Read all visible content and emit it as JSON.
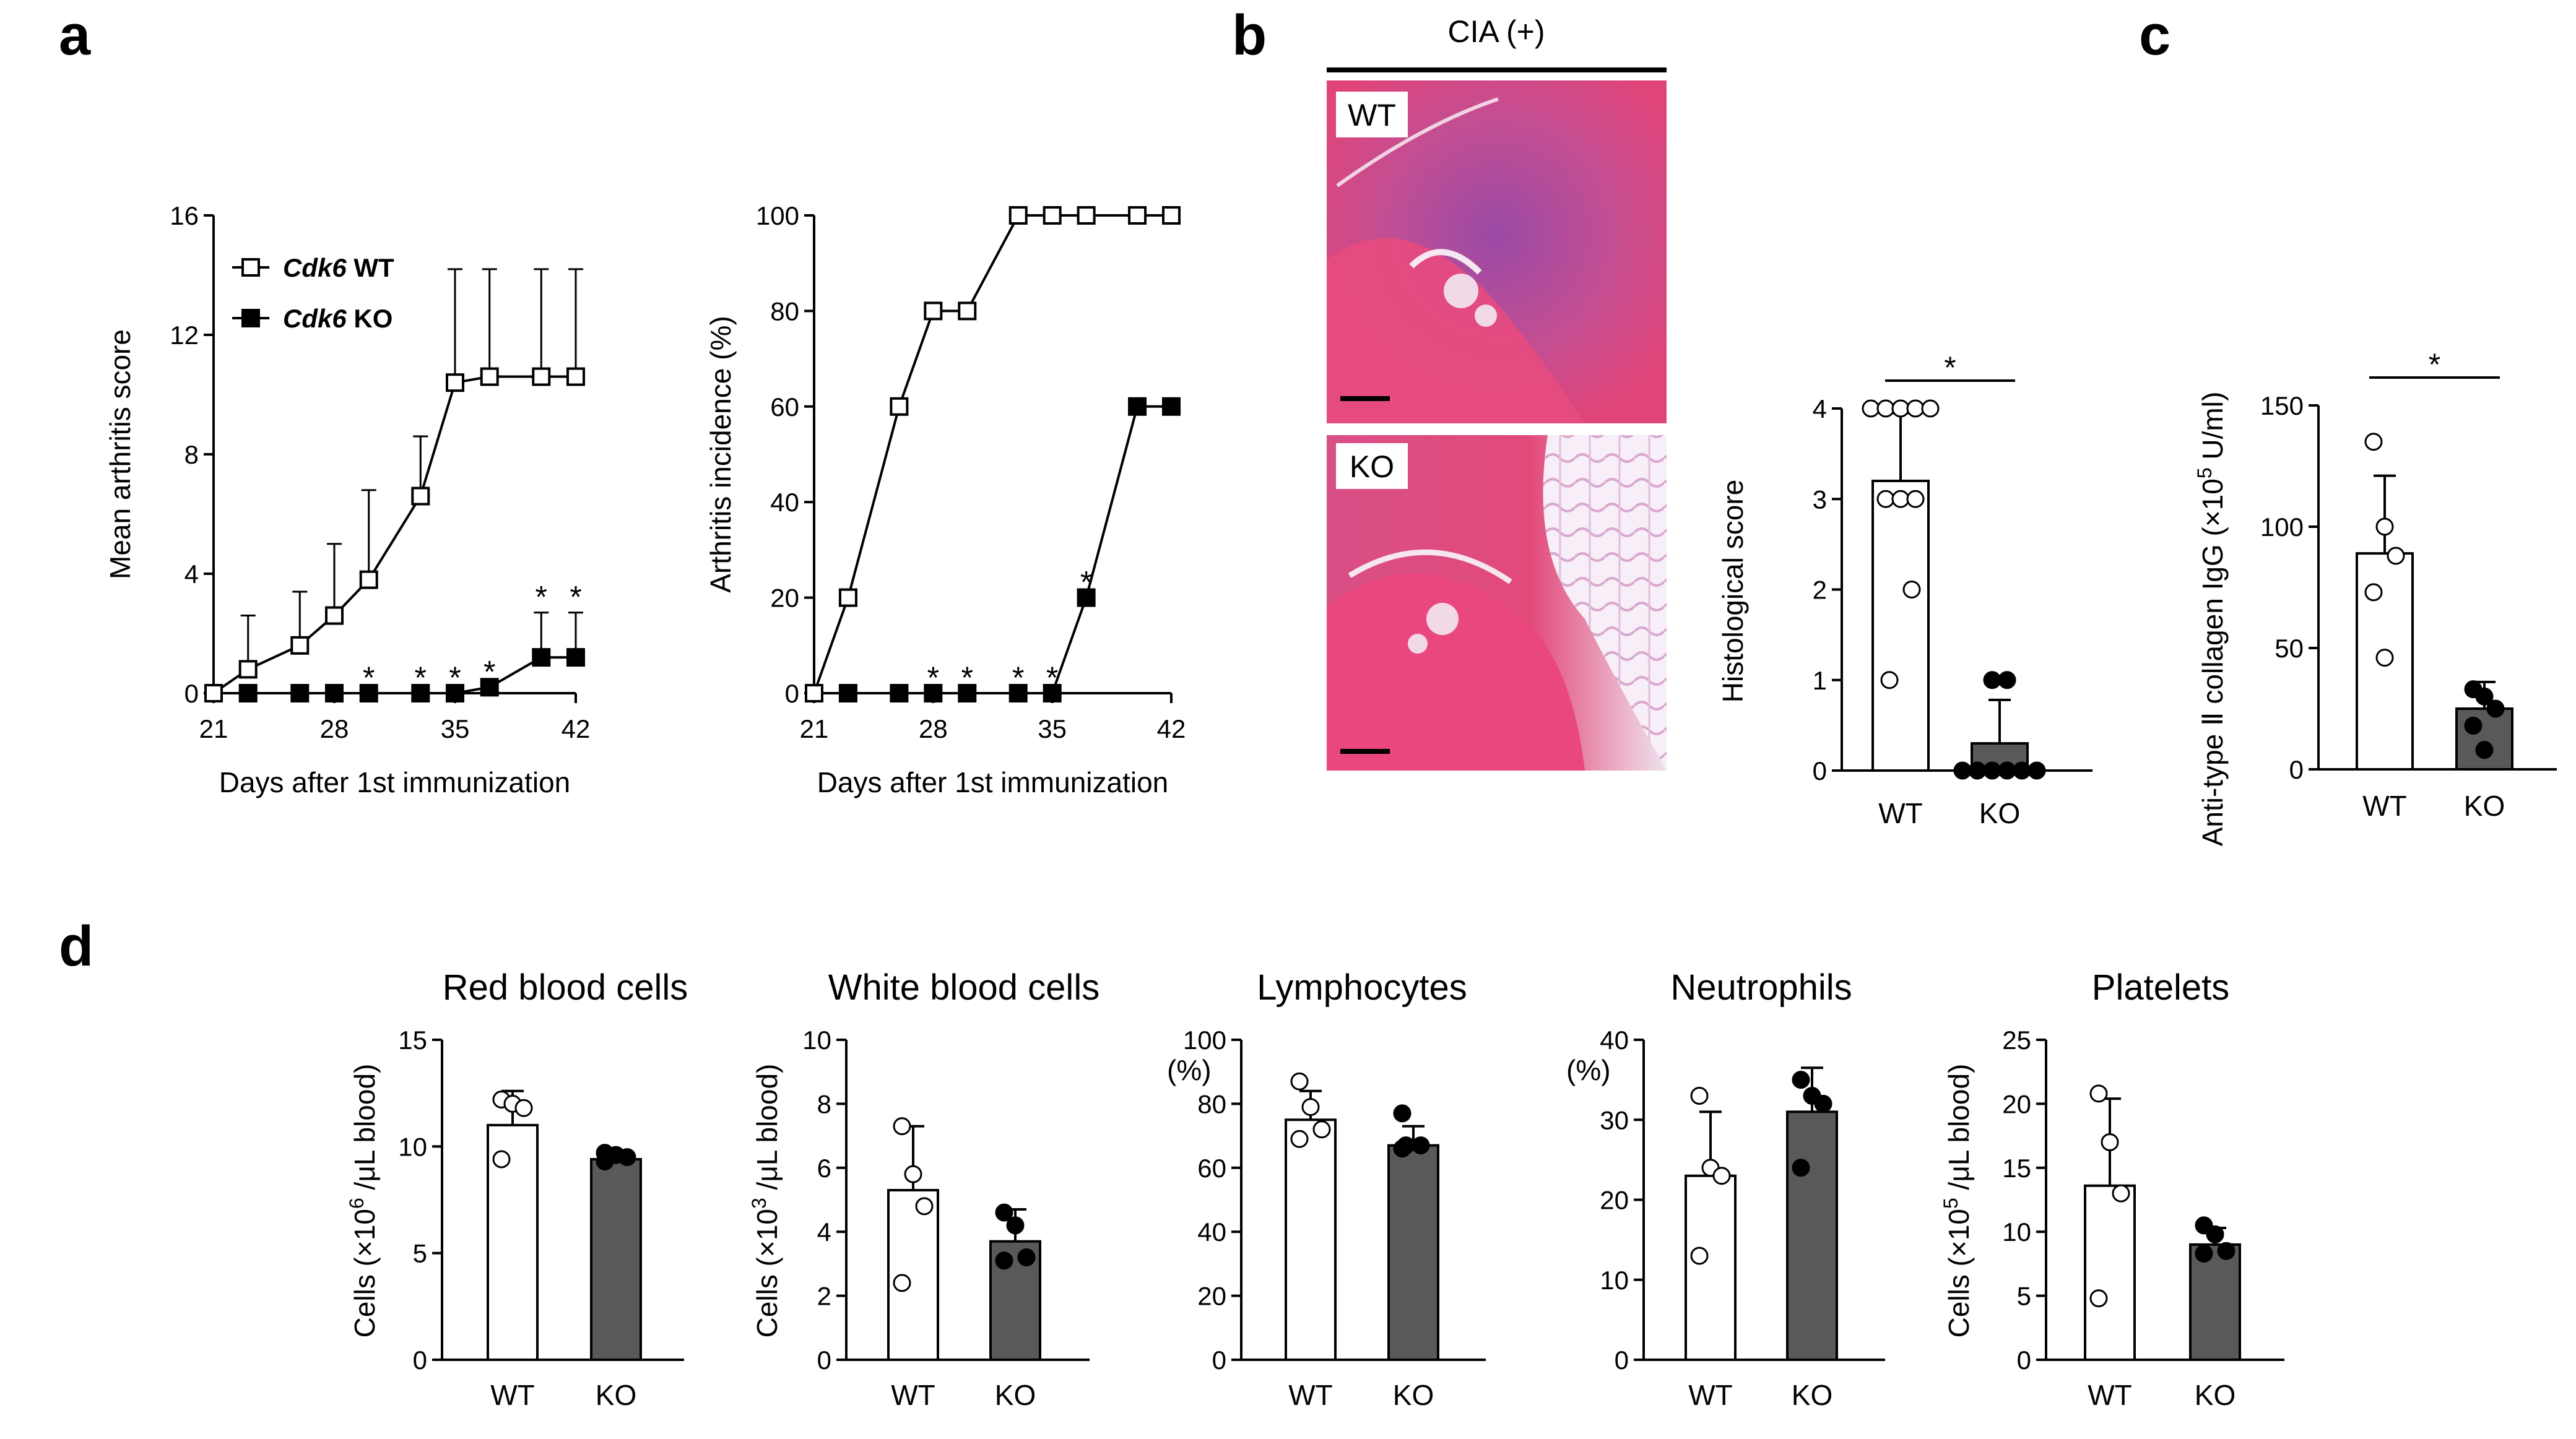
{
  "panels": {
    "a": "a",
    "b": "b",
    "c": "c",
    "d": "d"
  },
  "micrograph": {
    "header": "CIA (+)",
    "wt_label": "WT",
    "ko_label": "KO",
    "colors": {
      "tissue": "#e0457a",
      "stain": "#b64c9a",
      "fat": "#f7eef7"
    }
  },
  "colors": {
    "wt_fill": "#ffffff",
    "ko_fill": "#595959",
    "line": "#000000"
  },
  "chart_data": [
    {
      "id": "arthritis-score",
      "type": "line",
      "xlabel": "Days after 1st immunization",
      "ylabel": "Mean arthritis score",
      "xlim": [
        21,
        42
      ],
      "ylim": [
        0,
        16
      ],
      "xticks": [
        21,
        28,
        35,
        42
      ],
      "yticks": [
        0,
        4,
        8,
        12,
        16
      ],
      "legend_position": "top-left",
      "series": [
        {
          "name_prefix": "Cdk6",
          "name_suffix": " WT",
          "marker": "open-square",
          "x": [
            21,
            23,
            26,
            28,
            30,
            33,
            35,
            37,
            40,
            42
          ],
          "y": [
            0,
            0.8,
            1.6,
            2.6,
            3.8,
            6.6,
            10.4,
            10.6,
            10.6,
            10.6
          ],
          "error": [
            0,
            1.8,
            1.8,
            2.4,
            3.0,
            2.0,
            3.8,
            3.6,
            3.6,
            3.6
          ]
        },
        {
          "name_prefix": "Cdk6",
          "name_suffix": " KO",
          "marker": "filled-square",
          "x": [
            23,
            26,
            28,
            30,
            33,
            35,
            37,
            40,
            42
          ],
          "y": [
            0,
            0,
            0,
            0,
            0,
            0,
            0.2,
            1.2,
            1.2
          ],
          "error": [
            0,
            0,
            0,
            0,
            0,
            0,
            0,
            1.5,
            1.5
          ]
        }
      ],
      "significance_x": [
        30,
        33,
        35,
        37,
        40,
        42
      ],
      "significance_label": "*"
    },
    {
      "id": "arthritis-incidence",
      "type": "line",
      "xlabel": "Days after 1st immunization",
      "ylabel": "Arthritis incidence (%)",
      "xlim": [
        21,
        42
      ],
      "ylim": [
        0,
        100
      ],
      "xticks": [
        21,
        28,
        35,
        42
      ],
      "yticks": [
        0,
        20,
        40,
        60,
        80,
        100
      ],
      "series": [
        {
          "marker": "open-square",
          "x": [
            21,
            23,
            26,
            28,
            30,
            33,
            35,
            37,
            40,
            42
          ],
          "y": [
            0,
            20,
            60,
            80,
            80,
            100,
            100,
            100,
            100,
            100
          ]
        },
        {
          "marker": "filled-square",
          "x": [
            23,
            26,
            28,
            30,
            33,
            35,
            37,
            40,
            42
          ],
          "y": [
            0,
            0,
            0,
            0,
            0,
            0,
            20,
            60,
            60
          ]
        }
      ],
      "significance_x": [
        28,
        30,
        33,
        35,
        37
      ],
      "significance_label": "*"
    },
    {
      "id": "histological-score",
      "type": "bar",
      "categories": [
        "WT",
        "KO"
      ],
      "values": [
        3.2,
        0.3
      ],
      "error": [
        0.75,
        0.48
      ],
      "points": [
        [
          4,
          4,
          4,
          4,
          4,
          3,
          3,
          3,
          2,
          1
        ],
        [
          1,
          1,
          0,
          0,
          0,
          0,
          0,
          0
        ]
      ],
      "ylabel": "Histological score",
      "ylim": [
        0,
        4
      ],
      "yticks": [
        0,
        1,
        2,
        3,
        4
      ],
      "significance_label": "*"
    },
    {
      "id": "anti-collagen-igg",
      "type": "bar",
      "categories": [
        "WT",
        "KO"
      ],
      "values": [
        89,
        25
      ],
      "error": [
        32,
        11
      ],
      "points": [
        [
          135,
          100,
          88,
          73,
          46
        ],
        [
          33,
          30,
          25,
          18,
          8
        ]
      ],
      "ylabel_pre": "Anti-type Ⅱ collagen IgG (×10",
      "ylabel_sup": "5",
      "ylabel_post": " U/ml)",
      "ylim": [
        0,
        150
      ],
      "yticks": [
        0,
        50,
        100,
        150
      ],
      "significance_label": "*"
    },
    {
      "id": "red-blood-cells",
      "type": "bar",
      "title": "Red blood cells",
      "categories": [
        "WT",
        "KO"
      ],
      "values": [
        11.0,
        9.4
      ],
      "error": [
        1.6,
        0.2
      ],
      "points": [
        [
          12.2,
          12.0,
          11.8,
          9.4
        ],
        [
          9.7,
          9.6,
          9.5,
          9.3
        ]
      ],
      "ylabel_pre": "Cells (×10",
      "ylabel_sup": "6",
      "ylabel_post": " /μL blood)",
      "ylim": [
        0,
        15
      ],
      "yticks": [
        0,
        5,
        10,
        15
      ]
    },
    {
      "id": "white-blood-cells",
      "type": "bar",
      "title": "White blood cells",
      "categories": [
        "WT",
        "KO"
      ],
      "values": [
        5.3,
        3.7
      ],
      "error": [
        2.0,
        1.0
      ],
      "points": [
        [
          7.3,
          5.8,
          4.8,
          2.4
        ],
        [
          4.6,
          4.2,
          3.2,
          3.1
        ]
      ],
      "ylabel_pre": "Cells (×10",
      "ylabel_sup": "3",
      "ylabel_post": " /μL blood)",
      "ylim": [
        0,
        10
      ],
      "yticks": [
        0,
        2,
        4,
        6,
        8,
        10
      ]
    },
    {
      "id": "lymphocytes",
      "type": "bar",
      "title": "Lymphocytes",
      "unit": "(%)",
      "categories": [
        "WT",
        "KO"
      ],
      "values": [
        75,
        67
      ],
      "error": [
        9,
        6
      ],
      "points": [
        [
          87,
          79,
          72,
          69
        ],
        [
          77,
          67,
          67,
          66
        ]
      ],
      "ylim": [
        0,
        100
      ],
      "yticks": [
        0,
        20,
        40,
        60,
        80,
        100
      ]
    },
    {
      "id": "neutrophils",
      "type": "bar",
      "title": "Neutrophils",
      "unit": "(%)",
      "categories": [
        "WT",
        "KO"
      ],
      "values": [
        23,
        31
      ],
      "error": [
        8,
        5.5
      ],
      "points": [
        [
          33,
          24,
          23,
          13
        ],
        [
          35,
          33,
          32,
          24
        ]
      ],
      "ylim": [
        0,
        40
      ],
      "yticks": [
        0,
        10,
        20,
        30,
        40
      ]
    },
    {
      "id": "platelets",
      "type": "bar",
      "title": "Platelets",
      "categories": [
        "WT",
        "KO"
      ],
      "values": [
        13.6,
        9.0
      ],
      "error": [
        6.8,
        1.3
      ],
      "points": [
        [
          20.8,
          17.0,
          13.0,
          4.8
        ],
        [
          10.5,
          9.8,
          8.5,
          8.3
        ]
      ],
      "ylabel_pre": "Cells (×10",
      "ylabel_sup": "5",
      "ylabel_post": " /μL blood)",
      "ylim": [
        0,
        25
      ],
      "yticks": [
        0,
        5,
        10,
        15,
        20,
        25
      ]
    }
  ]
}
